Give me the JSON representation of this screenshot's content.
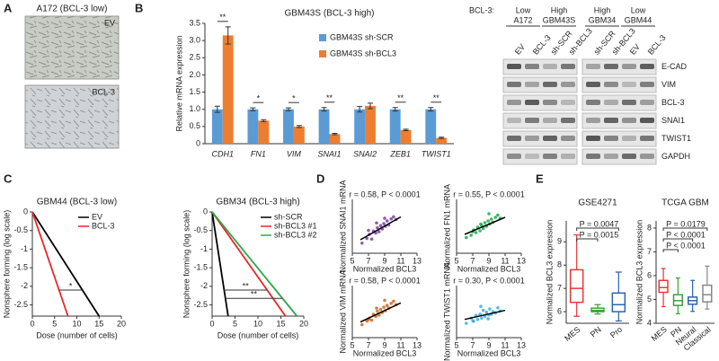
{
  "panel_labels": [
    "A",
    "B",
    "C",
    "D",
    "E"
  ],
  "panel_a": {
    "title": "A172 (BCL-3 low)",
    "images": [
      "EV",
      "BCL-3"
    ]
  },
  "western_blot": {
    "header": "BCL-3:",
    "groups": [
      {
        "level": "Low",
        "line": "A172"
      },
      {
        "level": "High",
        "line": "GBM43S"
      },
      {
        "level": "High",
        "line": "GBM34"
      },
      {
        "level": "Low",
        "line": "GBM44"
      }
    ],
    "lanes": [
      "EV",
      "BCL-3",
      "sh-SCR",
      "sh-BCL3",
      "sh-SCR",
      "sh-BCL3",
      "EV",
      "BCL-3"
    ],
    "proteins": [
      "E-CAD",
      "VIM",
      "BCL-3",
      "SNAI1",
      "TWIST1",
      "GAPDH"
    ]
  },
  "chart_data": [
    {
      "type": "bar",
      "title": "GBM43S (BCL-3 high)",
      "ylabel": "Relative mRNA expression",
      "categories": [
        "CDH1",
        "FN1",
        "VIM",
        "SNAI1",
        "SNAI2",
        "ZEB1",
        "TWIST1"
      ],
      "series": [
        {
          "name": "GBM43S sh-SCR",
          "color": "#5b9bd5",
          "values": [
            1,
            1,
            1,
            1,
            1,
            1,
            1
          ],
          "errors": [
            0.09,
            0.04,
            0.04,
            0.05,
            0.08,
            0.05,
            0.05
          ]
        },
        {
          "name": "GBM43S sh-BCL3",
          "color": "#ed7d31",
          "values": [
            3.15,
            0.67,
            0.5,
            0.28,
            1.1,
            0.4,
            0.17
          ],
          "errors": [
            0.25,
            0.03,
            0.03,
            0.02,
            0.08,
            0.02,
            0.02
          ]
        }
      ],
      "annotations": [
        {
          "category": "CDH1",
          "label": "**"
        },
        {
          "category": "FN1",
          "label": "*"
        },
        {
          "category": "VIM",
          "label": "*"
        },
        {
          "category": "SNAI1",
          "label": "**"
        },
        {
          "category": "ZEB1",
          "label": "**"
        },
        {
          "category": "TWIST1",
          "label": "**"
        }
      ],
      "ylim": [
        0,
        3.5
      ],
      "yticks": [
        0,
        0.5,
        {
          "value": 1,
          "label": "1.0"
        },
        1.5,
        {
          "value": 2,
          "label": "2.0"
        },
        2.5,
        {
          "value": 3,
          "label": "3.0"
        },
        3.5
      ],
      "legend": "upper right"
    },
    {
      "type": "line",
      "title": "GBM44 (BCL-3 low)",
      "xlabel": "Dose (number of cells)",
      "ylabel": "Nonsphere forming (log scale)",
      "series": [
        {
          "name": "EV",
          "color": "#000000",
          "x": [
            0,
            15
          ],
          "values": [
            0,
            -2.8
          ]
        },
        {
          "name": "BCL-3",
          "color": "#e8262b",
          "x": [
            0,
            8
          ],
          "values": [
            0,
            -2.8
          ]
        }
      ],
      "annotations": [
        {
          "label": "*",
          "between": [
            "BCL-3",
            "EV"
          ]
        }
      ],
      "xlim": [
        0,
        20
      ],
      "xticks": [
        0,
        5,
        10,
        15,
        20
      ],
      "ylim": [
        -2.8,
        0
      ],
      "yticks": [
        0,
        -0.5,
        -1,
        -1.5,
        -2,
        -2.5
      ],
      "legend": "upper right"
    },
    {
      "type": "line",
      "title": "GBM34 (BCL-3 high)",
      "xlabel": "Dose (number of cells)",
      "ylabel": "Nonsphere forming (log scale)",
      "series": [
        {
          "name": "sh-SCR",
          "color": "#000000",
          "x": [
            0,
            3.5
          ],
          "values": [
            0,
            -2.8
          ]
        },
        {
          "name": "sh-BCL3 #1",
          "color": "#e8262b",
          "x": [
            0,
            16
          ],
          "values": [
            0,
            -2.8
          ]
        },
        {
          "name": "sh-BCL3 #2",
          "color": "#2aa84a",
          "x": [
            0,
            18.5
          ],
          "values": [
            0,
            -2.8
          ]
        }
      ],
      "annotations": [
        {
          "label": "**",
          "between": [
            "sh-SCR",
            "sh-BCL3 #1"
          ]
        },
        {
          "label": "**",
          "between": [
            "sh-SCR",
            "sh-BCL3 #2"
          ]
        }
      ],
      "xlim": [
        0,
        20
      ],
      "xticks": [
        0,
        5,
        10,
        15,
        20
      ],
      "ylim": [
        -2.8,
        0
      ],
      "yticks": [
        0,
        -0.5,
        -1,
        -1.5,
        -2,
        -2.5
      ],
      "legend": "upper right"
    },
    {
      "type": "scatter",
      "annotation": "r = 0.58, P < 0.0001",
      "xlabel": "Normalized BCL3",
      "ylabel": "Normalized SNAI1 mRNA",
      "color": "#7b3fa0",
      "x": [
        6.2,
        6.8,
        7.1,
        7.4,
        7.6,
        7.9,
        8.1,
        8.3,
        8.5,
        8.7,
        8.9,
        9.1,
        9.3,
        9.5,
        9.8,
        10.1,
        10.4,
        7.0,
        8.0,
        9.0
      ],
      "values": [
        4.5,
        5.2,
        5.8,
        5.1,
        6.3,
        6.0,
        6.8,
        6.2,
        7.1,
        6.6,
        7.4,
        7.0,
        7.8,
        7.2,
        8.1,
        8.4,
        8.0,
        6.4,
        7.5,
        8.2
      ],
      "trend": {
        "x": [
          6,
          11
        ],
        "y": [
          5.0,
          8.4
        ]
      },
      "xlim": [
        5,
        13
      ],
      "xticks": [
        5,
        7,
        9,
        11,
        13
      ],
      "ylim": [
        3,
        11
      ]
    },
    {
      "type": "scatter",
      "annotation": "r = 0.55, P < 0.0001",
      "xlabel": "Normalized BCL3",
      "ylabel": "Normalized FN1 mRNA",
      "color": "#1fa84a",
      "x": [
        6.2,
        6.8,
        7.1,
        7.4,
        7.6,
        7.9,
        8.1,
        8.3,
        8.5,
        8.7,
        8.9,
        9.1,
        9.3,
        9.5,
        9.8,
        10.1,
        10.4,
        7.0,
        8.0,
        9.0
      ],
      "values": [
        11.5,
        12.0,
        13.2,
        12.6,
        13.8,
        13.0,
        14.2,
        13.5,
        14.8,
        14.0,
        15.2,
        14.5,
        15.6,
        14.9,
        16.0,
        16.5,
        15.8,
        12.8,
        14.5,
        16.8
      ],
      "trend": {
        "x": [
          6,
          11
        ],
        "y": [
          12.2,
          16.0
        ]
      },
      "xlim": [
        5,
        13
      ],
      "xticks": [
        5,
        7,
        9,
        11,
        13
      ],
      "ylim": [
        8,
        20
      ]
    },
    {
      "type": "scatter",
      "annotation": "r = 0.58, P < 0.0001",
      "xlabel": "Normalized BCL3",
      "ylabel": "Normalized VIM mRNA",
      "color": "#d2691e",
      "x": [
        6.2,
        6.8,
        7.1,
        7.4,
        7.6,
        7.9,
        8.1,
        8.3,
        8.5,
        8.7,
        8.9,
        9.1,
        9.3,
        9.5,
        9.8,
        10.1,
        10.4,
        7.0,
        8.0,
        9.0
      ],
      "values": [
        11.0,
        11.8,
        12.5,
        12.0,
        13.4,
        12.9,
        14.1,
        13.2,
        14.5,
        13.8,
        15.0,
        14.2,
        15.4,
        14.8,
        15.9,
        16.4,
        15.6,
        12.2,
        14.8,
        16.6
      ],
      "trend": {
        "x": [
          6,
          11
        ],
        "y": [
          11.6,
          16.0
        ]
      },
      "xlim": [
        5,
        13
      ],
      "xticks": [
        5,
        7,
        9,
        11,
        13
      ],
      "ylim": [
        8,
        20
      ]
    },
    {
      "type": "scatter",
      "annotation": "r = 0.30, P < 0.0001",
      "xlabel": "Normalized BCL3",
      "ylabel": "Normalized TWIST1 mRNA",
      "color": "#3ab0e0",
      "x": [
        6.2,
        6.8,
        7.1,
        7.4,
        7.6,
        7.9,
        8.1,
        8.3,
        8.5,
        8.7,
        8.9,
        9.1,
        9.3,
        9.5,
        9.8,
        10.1,
        10.4,
        7.0,
        8.0,
        9.0
      ],
      "values": [
        5.2,
        6.0,
        5.5,
        6.4,
        5.8,
        6.6,
        6.0,
        7.2,
        6.3,
        6.9,
        5.9,
        7.4,
        6.6,
        7.0,
        6.8,
        7.6,
        7.1,
        5.6,
        7.8,
        6.5
      ],
      "trend": {
        "x": [
          6,
          11
        ],
        "y": [
          5.8,
          7.2
        ]
      },
      "xlim": [
        5,
        13
      ],
      "xticks": [
        5,
        7,
        9,
        11,
        13
      ],
      "ylim": [
        3,
        11
      ]
    },
    {
      "type": "box",
      "title": "GSE4271",
      "ylabel": "Normalized BCL3 expression",
      "categories": [
        "MES",
        "PN",
        "Pro"
      ],
      "colors": [
        "#e8373a",
        "#3aa23a",
        "#2a64b0"
      ],
      "boxes": [
        {
          "min": 5.8,
          "q1": 6.4,
          "median": 7.0,
          "q3": 7.8,
          "max": 9.3
        },
        {
          "min": 5.9,
          "q1": 6.0,
          "median": 6.05,
          "q3": 6.15,
          "max": 6.3
        },
        {
          "min": 5.6,
          "q1": 6.0,
          "median": 6.3,
          "q3": 6.8,
          "max": 7.7
        }
      ],
      "comparisons": [
        {
          "label": "P = 0.0015",
          "from": "MES",
          "to": "PN"
        },
        {
          "label": "P = 0.0047",
          "from": "MES",
          "to": "Pro"
        }
      ],
      "ylim": [
        5.5,
        9.9
      ],
      "yticks": [
        6,
        7,
        8,
        9
      ]
    },
    {
      "type": "box",
      "title": "TCGA GBM",
      "ylabel": "Normalized BCL3 expression",
      "categories": [
        "MES",
        "PN",
        "Neural",
        "Classical"
      ],
      "colors": [
        "#e8373a",
        "#3aa23a",
        "#2a64b0",
        "#888888"
      ],
      "boxes": [
        {
          "min": 4.7,
          "q1": 5.3,
          "median": 5.5,
          "q3": 5.8,
          "max": 6.3
        },
        {
          "min": 4.4,
          "q1": 4.75,
          "median": 4.95,
          "q3": 5.2,
          "max": 5.9
        },
        {
          "min": 4.5,
          "q1": 4.8,
          "median": 4.95,
          "q3": 5.1,
          "max": 5.8
        },
        {
          "min": 4.6,
          "q1": 4.9,
          "median": 5.2,
          "q3": 5.6,
          "max": 6.4
        }
      ],
      "comparisons": [
        {
          "label": "P < 0.0001",
          "from": "MES",
          "to": "PN"
        },
        {
          "label": "P < 0.0001",
          "from": "MES",
          "to": "Neural"
        },
        {
          "label": "P = 0.0179",
          "from": "MES",
          "to": "Classical"
        }
      ],
      "ylim": [
        4,
        8.3
      ],
      "yticks": [
        4,
        5,
        6,
        7,
        8
      ]
    }
  ]
}
